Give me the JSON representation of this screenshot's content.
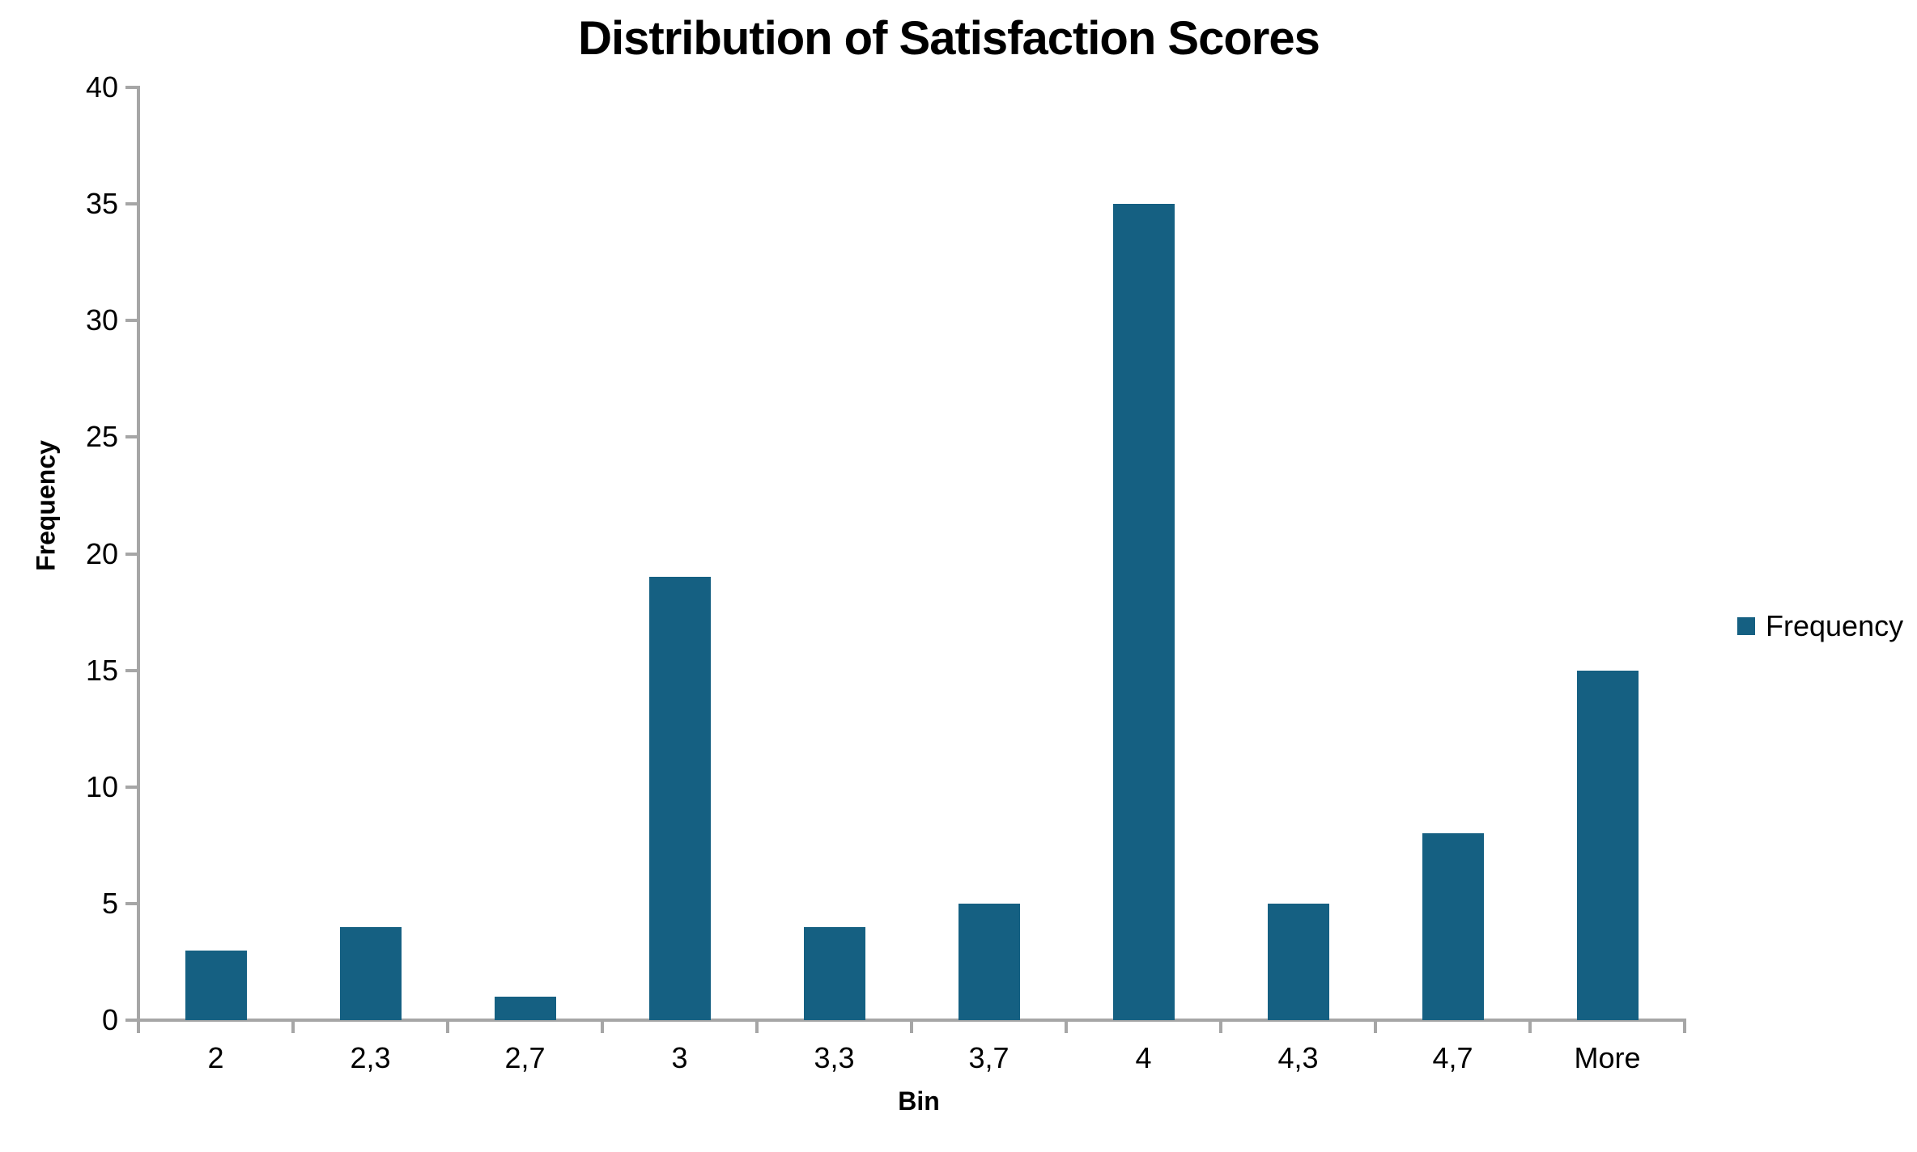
{
  "chart_data": {
    "type": "bar",
    "title": "Distribution of Satisfaction Scores",
    "xlabel": "Bin",
    "ylabel": "Frequency",
    "categories": [
      "2",
      "2,3",
      "2,7",
      "3",
      "3,3",
      "3,7",
      "4",
      "4,3",
      "4,7",
      "More"
    ],
    "series": [
      {
        "name": "Frequency",
        "values": [
          3,
          4,
          1,
          19,
          4,
          5,
          35,
          5,
          8,
          15
        ]
      }
    ],
    "ylim": [
      0,
      40
    ],
    "yticks": [
      0,
      5,
      10,
      15,
      20,
      25,
      30,
      35,
      40
    ],
    "grid": false,
    "legend_position": "right",
    "colors": {
      "bar": "#156082",
      "axis": "#A6A6A6",
      "text": "#000000",
      "background": "#FFFFFF"
    }
  },
  "legend": {
    "items": [
      {
        "label": "Frequency",
        "color": "#156082"
      }
    ]
  }
}
